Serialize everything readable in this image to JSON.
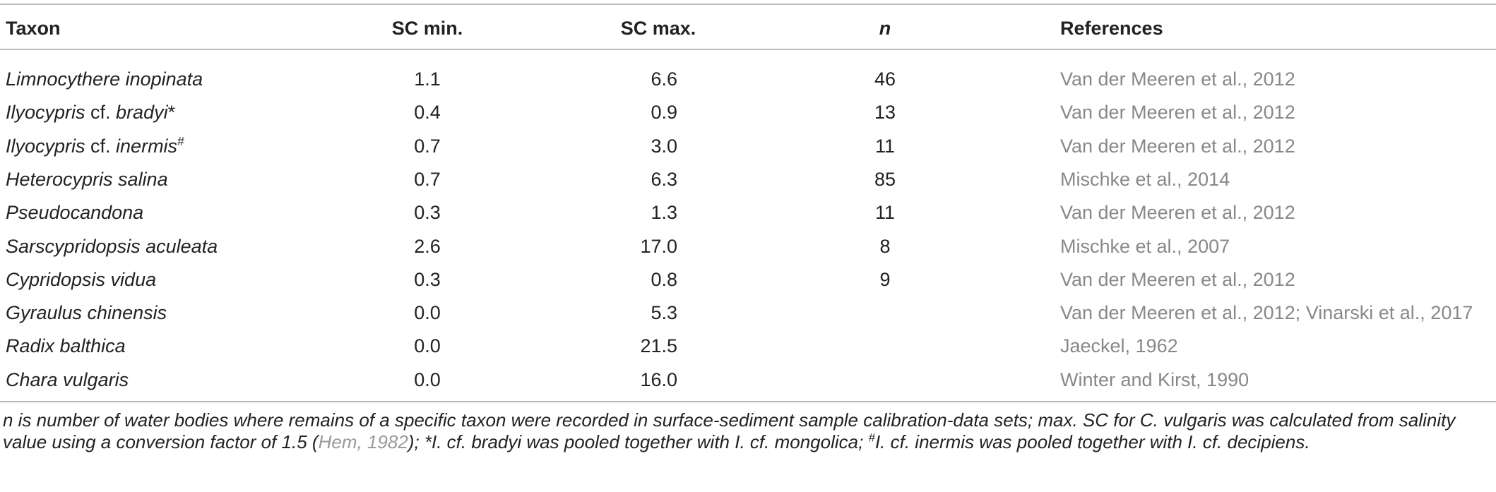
{
  "table": {
    "header": [
      "Taxon",
      "SC min.",
      "SC max.",
      "n",
      "References"
    ],
    "rows": [
      {
        "taxon": [
          {
            "text": "Limnocythere inopinata",
            "italic": true
          }
        ],
        "sc_min": "1.1",
        "sc_max": "6.6",
        "n": 46,
        "references": "Van der Meeren et al., 2012"
      },
      {
        "taxon": [
          {
            "text": "Ilyocypris",
            "italic": true
          },
          {
            "text": " cf. ",
            "italic": false
          },
          {
            "text": "bradyi",
            "italic": true
          },
          {
            "text": "*",
            "italic": false
          }
        ],
        "sc_min": "0.4",
        "sc_max": "0.9",
        "n": 13,
        "references": "Van der Meeren et al., 2012"
      },
      {
        "taxon": [
          {
            "text": "Ilyocypris",
            "italic": true
          },
          {
            "text": " cf. ",
            "italic": false
          },
          {
            "text": "inermis",
            "italic": true
          },
          {
            "text": "#",
            "italic": false,
            "sup": true
          }
        ],
        "sc_min": "0.7",
        "sc_max": "3.0",
        "n": 11,
        "references": "Van der Meeren et al., 2012"
      },
      {
        "taxon": [
          {
            "text": "Heterocypris salina",
            "italic": true
          }
        ],
        "sc_min": "0.7",
        "sc_max": "6.3",
        "n": 85,
        "references": "Mischke et al., 2014"
      },
      {
        "taxon": [
          {
            "text": "Pseudocandona",
            "italic": true
          }
        ],
        "sc_min": "0.3",
        "sc_max": "1.3",
        "n": 11,
        "references": "Van der Meeren et al., 2012"
      },
      {
        "taxon": [
          {
            "text": "Sarscypridopsis aculeata",
            "italic": true
          }
        ],
        "sc_min": "2.6",
        "sc_max": "17.0",
        "n": 8,
        "references": "Mischke et al., 2007"
      },
      {
        "taxon": [
          {
            "text": "Cypridopsis vidua",
            "italic": true
          }
        ],
        "sc_min": "0.3",
        "sc_max": "0.8",
        "n": 9,
        "references": "Van der Meeren et al., 2012"
      },
      {
        "taxon": [
          {
            "text": "Gyraulus chinensis",
            "italic": true
          }
        ],
        "sc_min": "0.0",
        "sc_max": "5.3",
        "n": null,
        "references": "Van der Meeren et al., 2012; Vinarski et al., 2017"
      },
      {
        "taxon": [
          {
            "text": "Radix balthica",
            "italic": true
          }
        ],
        "sc_min": "0.0",
        "sc_max": "21.5",
        "n": null,
        "references": "Jaeckel, 1962"
      },
      {
        "taxon": [
          {
            "text": "Chara vulgaris",
            "italic": true
          }
        ],
        "sc_min": "0.0",
        "sc_max": "16.0",
        "n": null,
        "references": "Winter and Kirst, 1990"
      }
    ]
  },
  "footnote": [
    {
      "text": "n is number of water bodies where remains of a specific taxon were recorded in surface-sediment sample calibration-data sets; max. SC for C. vulgaris was calculated from salinity value using a conversion factor of 1.5 ("
    },
    {
      "text": "Hem, 1982",
      "link": true
    },
    {
      "text": "); *I. cf. bradyi was pooled together with I. cf. mongolica; "
    },
    {
      "text": "#",
      "sup": true
    },
    {
      "text": "I. cf. inermis was pooled together with I. cf. decipiens."
    }
  ]
}
